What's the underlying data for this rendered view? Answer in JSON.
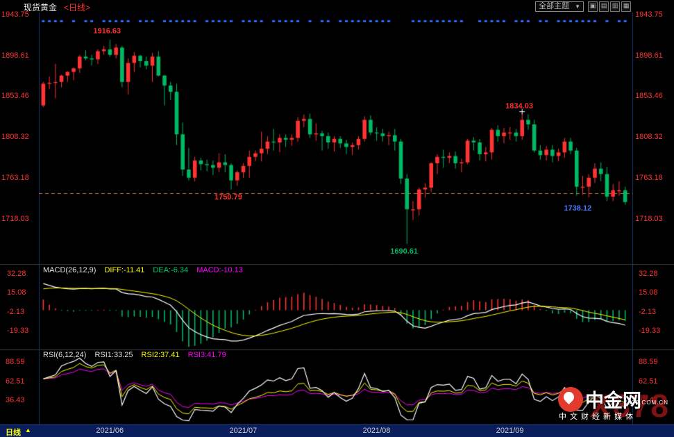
{
  "header": {
    "symbol": "现货黄金",
    "period_tag": "<日线>",
    "theme_dropdown": "全部主题",
    "dropdown_arrow": "▼",
    "window_buttons": [
      "▣",
      "▤",
      "▥",
      "▦"
    ]
  },
  "indicators": {
    "macd_title": "MACD(26,12,9)",
    "diff_text": "DIFF:-11.41",
    "dea_text": "DEA:-6.34",
    "macd_text": "MACD:-10.13",
    "rsi_title": "RSI(6,12,24)",
    "rsi1_text": "RSI1:33.25",
    "rsi2_text": "RSI2:37.41",
    "rsi3_text": "RSI3:41.79"
  },
  "footer": {
    "period": "日线",
    "arrow": "▲",
    "dates": [
      "2021/06",
      "2021/07",
      "2021/08",
      "2021/09"
    ]
  },
  "watermark": {
    "big_text": "X678",
    "brand": "中金网",
    "tagline": "中文财经新媒体",
    "small_text": "X678.COM.CN"
  },
  "palette": {
    "background": "#000000",
    "up": "#ff3434",
    "down": "#00b964",
    "axis_text": "#ff3232",
    "event_marker": "#2f6bff",
    "dashed_line": "#c87828",
    "diff_line": "#ffffff",
    "dea_line": "#ffff00",
    "rsi1_line": "#ffffff",
    "rsi2_line": "#ffff00",
    "rsi3_line": "#ff00ff",
    "footer_bg": "#0a1e5c",
    "annotation_blue": "#4a7cff"
  },
  "chart_data": {
    "type": "candlestick",
    "title": "现货黄金 日线",
    "dates": [
      "05/17",
      "05/18",
      "05/19",
      "05/20",
      "05/21",
      "05/24",
      "05/25",
      "05/26",
      "05/27",
      "05/28",
      "05/31",
      "06/01",
      "06/02",
      "06/03",
      "06/04",
      "06/07",
      "06/08",
      "06/09",
      "06/10",
      "06/11",
      "06/14",
      "06/15",
      "06/16",
      "06/17",
      "06/18",
      "06/21",
      "06/22",
      "06/23",
      "06/24",
      "06/25",
      "06/28",
      "06/29",
      "06/30",
      "07/01",
      "07/02",
      "07/05",
      "07/06",
      "07/07",
      "07/08",
      "07/09",
      "07/12",
      "07/13",
      "07/14",
      "07/15",
      "07/16",
      "07/19",
      "07/20",
      "07/21",
      "07/22",
      "07/23",
      "07/26",
      "07/27",
      "07/28",
      "07/29",
      "07/30",
      "08/02",
      "08/03",
      "08/04",
      "08/05",
      "08/06",
      "08/09",
      "08/10",
      "08/11",
      "08/12",
      "08/13",
      "08/16",
      "08/17",
      "08/18",
      "08/19",
      "08/20",
      "08/23",
      "08/24",
      "08/25",
      "08/26",
      "08/27",
      "08/30",
      "08/31",
      "09/01",
      "09/02",
      "09/03",
      "09/06",
      "09/07",
      "09/08",
      "09/09",
      "09/10",
      "09/13",
      "09/14",
      "09/15",
      "09/16",
      "09/17",
      "09/20",
      "09/21",
      "09/22",
      "09/23",
      "09/24",
      "09/27",
      "09/28"
    ],
    "open": [
      1844,
      1868,
      1869,
      1870,
      1877,
      1881,
      1885,
      1898,
      1896,
      1895,
      1904,
      1906,
      1900,
      1908,
      1870,
      1891,
      1899,
      1893,
      1888,
      1898,
      1877,
      1866,
      1859,
      1812,
      1773,
      1764,
      1783,
      1779,
      1778,
      1775,
      1781,
      1778,
      1761,
      1770,
      1777,
      1787,
      1791,
      1796,
      1804,
      1803,
      1808,
      1806,
      1808,
      1827,
      1829,
      1812,
      1813,
      1810,
      1803,
      1807,
      1802,
      1798,
      1800,
      1807,
      1828,
      1814,
      1813,
      1810,
      1811,
      1804,
      1763,
      1729,
      1729,
      1751,
      1753,
      1780,
      1787,
      1786,
      1788,
      1780,
      1781,
      1805,
      1803,
      1790,
      1792,
      1817,
      1810,
      1814,
      1814,
      1810,
      1828,
      1823,
      1794,
      1789,
      1795,
      1788,
      1792,
      1804,
      1794,
      1754,
      1754,
      1764,
      1774,
      1768,
      1743,
      1750,
      1750
    ],
    "high": [
      1870,
      1876,
      1890,
      1878,
      1882,
      1886,
      1900,
      1905,
      1900,
      1906,
      1910,
      1916.63,
      1912,
      1910,
      1896,
      1903,
      1900,
      1898,
      1902,
      1904,
      1878,
      1870,
      1868,
      1825,
      1797,
      1787,
      1786,
      1784,
      1783,
      1791,
      1790,
      1780,
      1772,
      1780,
      1794,
      1794,
      1815,
      1810,
      1818,
      1812,
      1812,
      1812,
      1831,
      1834,
      1835,
      1824,
      1816,
      1814,
      1810,
      1810,
      1806,
      1803,
      1810,
      1832,
      1833,
      1820,
      1818,
      1815,
      1818,
      1807,
      1768,
      1738,
      1753,
      1758,
      1781,
      1790,
      1795,
      1792,
      1793,
      1785,
      1807,
      1809,
      1807,
      1798,
      1819,
      1822,
      1819,
      1820,
      1818,
      1834.03,
      1834,
      1828,
      1800,
      1799,
      1800,
      1796,
      1808,
      1808,
      1797,
      1766,
      1768,
      1780,
      1781,
      1776,
      1757,
      1760,
      1754
    ],
    "low": [
      1842,
      1862,
      1852,
      1864,
      1870,
      1872,
      1880,
      1894,
      1888,
      1890,
      1900,
      1898,
      1896,
      1864,
      1856,
      1881,
      1886,
      1884,
      1870,
      1876,
      1844,
      1850,
      1800,
      1766,
      1761,
      1760,
      1772,
      1771,
      1767,
      1770,
      1770,
      1750.79,
      1755,
      1764,
      1764,
      1782,
      1782,
      1790,
      1794,
      1792,
      1798,
      1799,
      1804,
      1820,
      1808,
      1805,
      1794,
      1796,
      1793,
      1797,
      1790,
      1789,
      1795,
      1804,
      1811,
      1805,
      1804,
      1800,
      1794,
      1757,
      1690.61,
      1717,
      1722,
      1742,
      1748,
      1768,
      1775,
      1780,
      1774,
      1770,
      1779,
      1794,
      1783,
      1782,
      1784,
      1804,
      1802,
      1806,
      1804,
      1806,
      1817,
      1792,
      1784,
      1783,
      1781,
      1782,
      1786,
      1790,
      1744,
      1745,
      1742,
      1758,
      1760,
      1738.12,
      1738,
      1744,
      1734
    ],
    "close": [
      1868,
      1869,
      1870,
      1877,
      1881,
      1885,
      1898,
      1896,
      1895,
      1904,
      1906,
      1900,
      1908,
      1870,
      1891,
      1899,
      1893,
      1888,
      1898,
      1877,
      1866,
      1859,
      1812,
      1773,
      1764,
      1783,
      1779,
      1778,
      1775,
      1781,
      1778,
      1761,
      1770,
      1777,
      1787,
      1791,
      1796,
      1804,
      1803,
      1808,
      1806,
      1808,
      1827,
      1829,
      1812,
      1813,
      1810,
      1803,
      1807,
      1802,
      1798,
      1800,
      1807,
      1828,
      1814,
      1813,
      1810,
      1811,
      1804,
      1763,
      1729,
      1729,
      1751,
      1753,
      1780,
      1787,
      1786,
      1788,
      1780,
      1781,
      1805,
      1803,
      1790,
      1792,
      1817,
      1810,
      1814,
      1814,
      1810,
      1828,
      1823,
      1794,
      1789,
      1795,
      1788,
      1792,
      1804,
      1794,
      1754,
      1754,
      1764,
      1774,
      1768,
      1743,
      1750,
      1750,
      1737
    ],
    "price_axis_ticks": [
      1943.75,
      1898.61,
      1853.46,
      1808.32,
      1763.18,
      1718.03
    ],
    "dashed_price_line": 1747.0,
    "annotations": [
      {
        "index": 11,
        "price": 1916.63,
        "text": "1916.63",
        "color": "#ff3232",
        "side": "above"
      },
      {
        "index": 31,
        "price": 1750.79,
        "text": "1750.79",
        "color": "#ff3232",
        "side": "below"
      },
      {
        "index": 60,
        "price": 1690.61,
        "text": "1690.61",
        "color": "#00b964",
        "side": "below"
      },
      {
        "index": 79,
        "price": 1834.03,
        "text": "1834.03",
        "color": "#ff3232",
        "side": "above",
        "marker": true
      },
      {
        "index": 93,
        "price": 1738.12,
        "text": "1738.12",
        "color": "#4a7cff",
        "side": "below",
        "align": "right"
      }
    ],
    "x_axis_labels": [
      "2021/06",
      "2021/07",
      "2021/08",
      "2021/09"
    ],
    "sub_charts": [
      {
        "type": "macd",
        "label": "MACD(26,12,9)",
        "params": [
          26,
          12,
          9
        ],
        "latest": {
          "DIFF": -11.41,
          "DEA": -6.34,
          "MACD": -10.13
        },
        "axis_ticks": [
          32.28,
          15.08,
          -2.13,
          -19.33
        ]
      },
      {
        "type": "rsi",
        "label": "RSI(6,12,24)",
        "params": [
          6,
          12,
          24
        ],
        "latest": {
          "RSI1": 33.25,
          "RSI2": 37.41,
          "RSI3": 41.79
        },
        "axis_ticks": [
          88.59,
          62.51,
          36.43
        ]
      }
    ]
  }
}
